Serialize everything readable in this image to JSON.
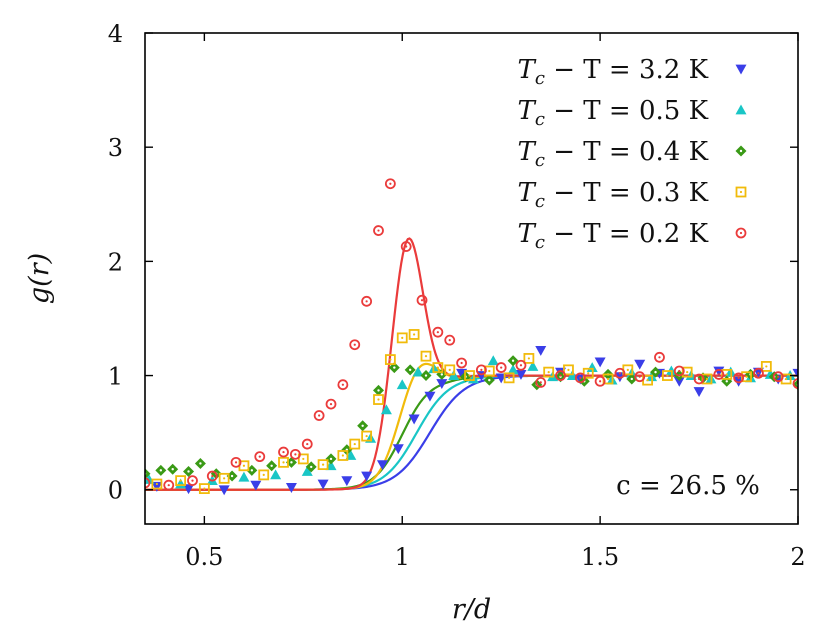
{
  "chart_data": {
    "type": "scatter",
    "title": "",
    "xlabel": "r/d",
    "ylabel": "g(r)",
    "xlim": [
      0.35,
      2.0
    ],
    "ylim": [
      -0.3,
      4.0
    ],
    "xticks": [
      0.5,
      1,
      1.5,
      2
    ],
    "xtick_labels": [
      "0.5",
      "1",
      "1.5",
      "2"
    ],
    "yticks": [
      0,
      1,
      2,
      3,
      4
    ],
    "ytick_labels": [
      "0",
      "1",
      "2",
      "3",
      "4"
    ],
    "grid": false,
    "legend_position": "top-right",
    "annotation": "c = 26.5 %",
    "series": [
      {
        "name": "T_c − T = 3.2 K",
        "label_lhs": "T",
        "label_sub": "c",
        "label_rhs": " − T = 3.2 K",
        "marker": "triangle-down",
        "color": "#3a3ee8",
        "fit_peak": 0.98,
        "fit_x0": 1.07,
        "fit_width": 0.08,
        "fit_baseline": 0.0,
        "x": [
          0.38,
          0.46,
          0.55,
          0.63,
          0.72,
          0.8,
          0.86,
          0.91,
          0.95,
          0.99,
          1.03,
          1.07,
          1.1,
          1.15,
          1.2,
          1.25,
          1.3,
          1.35,
          1.4,
          1.45,
          1.5,
          1.55,
          1.6,
          1.65,
          1.7,
          1.75,
          1.8,
          1.85,
          1.9,
          1.95,
          2.0
        ],
        "y": [
          0.03,
          0.01,
          0.0,
          0.04,
          0.02,
          0.05,
          0.08,
          0.12,
          0.22,
          0.36,
          0.62,
          0.82,
          0.93,
          1.02,
          1.0,
          0.98,
          1.01,
          1.22,
          1.03,
          0.97,
          1.12,
          0.99,
          1.1,
          1.02,
          0.95,
          0.86,
          1.04,
          0.95,
          1.03,
          0.97,
          1.02
        ]
      },
      {
        "name": "T_c − T = 0.5 K",
        "label_lhs": "T",
        "label_sub": "c",
        "label_rhs": " − T = 0.5 K",
        "marker": "triangle-up",
        "color": "#19c6c6",
        "fit_peak": 1.02,
        "fit_x0": 1.04,
        "fit_width": 0.075,
        "fit_baseline": 0.0,
        "x": [
          0.36,
          0.44,
          0.52,
          0.6,
          0.68,
          0.76,
          0.82,
          0.87,
          0.92,
          0.96,
          1.0,
          1.04,
          1.08,
          1.13,
          1.18,
          1.23,
          1.28,
          1.33,
          1.38,
          1.43,
          1.48,
          1.53,
          1.58,
          1.63,
          1.68,
          1.73,
          1.78,
          1.83,
          1.88,
          1.93,
          1.98
        ],
        "y": [
          0.09,
          0.05,
          0.08,
          0.11,
          0.13,
          0.16,
          0.21,
          0.3,
          0.45,
          0.7,
          0.92,
          1.03,
          1.06,
          1.0,
          0.97,
          1.13,
          1.05,
          1.08,
          0.99,
          1.0,
          1.07,
          0.96,
          1.02,
          0.99,
          1.04,
          1.0,
          0.97,
          1.03,
          0.98,
          1.01,
          1.0
        ]
      },
      {
        "name": "T_c − T = 0.4 K",
        "label_lhs": "T",
        "label_sub": "c",
        "label_rhs": " − T = 0.4 K",
        "marker": "diamond",
        "color": "#3a9a16",
        "fit_peak": 1.12,
        "fit_x0": 1.02,
        "fit_width": 0.07,
        "fit_baseline": 0.0,
        "x": [
          0.35,
          0.39,
          0.42,
          0.46,
          0.49,
          0.53,
          0.57,
          0.62,
          0.67,
          0.72,
          0.77,
          0.82,
          0.86,
          0.9,
          0.94,
          0.98,
          1.02,
          1.06,
          1.1,
          1.16,
          1.22,
          1.28,
          1.34,
          1.4,
          1.46,
          1.52,
          1.58,
          1.64,
          1.7,
          1.76,
          1.82,
          1.88,
          1.94,
          2.0
        ],
        "y": [
          0.14,
          0.17,
          0.18,
          0.16,
          0.23,
          0.14,
          0.12,
          0.17,
          0.21,
          0.24,
          0.2,
          0.27,
          0.35,
          0.56,
          0.87,
          1.07,
          1.05,
          1.0,
          1.01,
          0.99,
          0.96,
          1.13,
          0.92,
          0.99,
          0.95,
          1.01,
          0.97,
          1.03,
          1.0,
          0.98,
          0.95,
          1.01,
          0.99,
          0.92
        ]
      },
      {
        "name": "T_c − T = 0.3 K",
        "label_lhs": "T",
        "label_sub": "c",
        "label_rhs": " − T = 0.3 K",
        "marker": "square",
        "color": "#f1bb0b",
        "fit_peak": 1.5,
        "fit_x0": 1.03,
        "fit_width": 0.065,
        "fit_baseline": 0.0,
        "x": [
          0.38,
          0.44,
          0.5,
          0.55,
          0.6,
          0.65,
          0.7,
          0.75,
          0.8,
          0.85,
          0.88,
          0.91,
          0.94,
          0.97,
          1.0,
          1.03,
          1.06,
          1.09,
          1.12,
          1.17,
          1.22,
          1.27,
          1.32,
          1.37,
          1.42,
          1.47,
          1.52,
          1.57,
          1.62,
          1.67,
          1.72,
          1.77,
          1.82,
          1.87,
          1.92,
          1.97
        ],
        "y": [
          0.05,
          0.08,
          0.01,
          0.1,
          0.21,
          0.13,
          0.24,
          0.27,
          0.22,
          0.3,
          0.4,
          0.47,
          0.79,
          1.14,
          1.33,
          1.36,
          1.17,
          1.07,
          1.05,
          1.0,
          1.04,
          0.98,
          1.15,
          1.03,
          1.05,
          1.02,
          0.97,
          1.05,
          0.96,
          1.0,
          1.03,
          0.97,
          1.01,
          0.99,
          1.08,
          0.97
        ]
      },
      {
        "name": "T_c − T = 0.2 K",
        "label_lhs": "T",
        "label_sub": "c",
        "label_rhs": " − T = 0.2 K",
        "marker": "circle",
        "color": "#ea3b3b",
        "fit_peak": 2.67,
        "fit_x0": 1.01,
        "fit_width": 0.055,
        "fit_baseline": 0.0,
        "x": [
          0.35,
          0.41,
          0.47,
          0.52,
          0.58,
          0.64,
          0.7,
          0.73,
          0.76,
          0.79,
          0.82,
          0.85,
          0.88,
          0.91,
          0.94,
          0.97,
          1.01,
          1.05,
          1.09,
          1.12,
          1.15,
          1.2,
          1.25,
          1.3,
          1.35,
          1.4,
          1.45,
          1.5,
          1.55,
          1.6,
          1.65,
          1.7,
          1.75,
          1.8,
          1.85,
          1.9,
          1.95,
          2.0
        ],
        "y": [
          0.06,
          0.04,
          0.08,
          0.12,
          0.24,
          0.29,
          0.33,
          0.31,
          0.4,
          0.65,
          0.75,
          0.92,
          1.27,
          1.65,
          2.27,
          2.68,
          2.13,
          1.66,
          1.38,
          1.31,
          1.11,
          1.05,
          1.07,
          1.09,
          0.94,
          1.0,
          0.98,
          0.95,
          1.02,
          0.99,
          1.16,
          1.04,
          0.97,
          1.01,
          0.98,
          1.02,
          0.99,
          0.93
        ]
      }
    ]
  }
}
